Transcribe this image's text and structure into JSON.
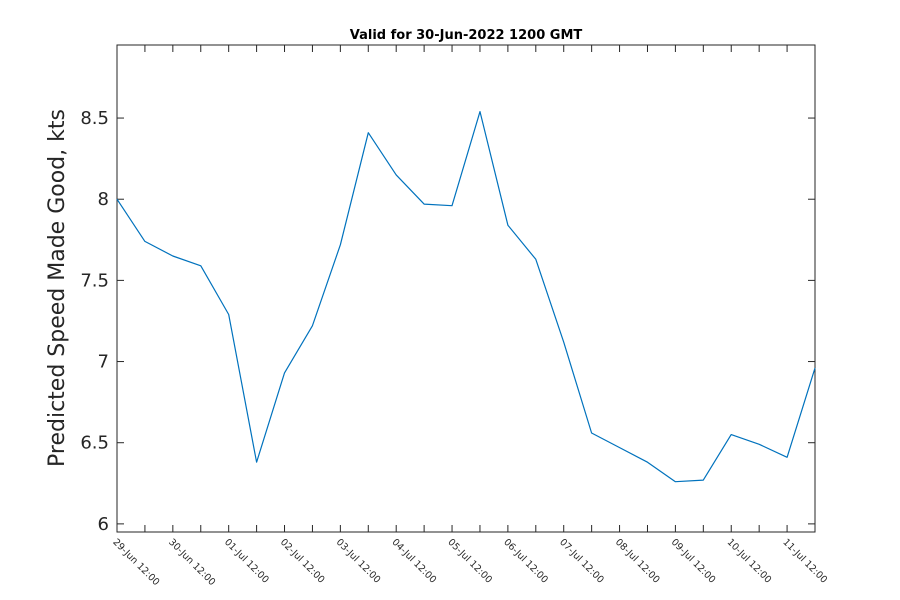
{
  "chart_data": {
    "type": "line",
    "title": "Valid for 30-Jun-2022 1200 GMT",
    "ylabel": "Predicted Speed Made Good, kts",
    "xlabel": "",
    "ylim": [
      5.95,
      8.95
    ],
    "yticks": [
      6,
      6.5,
      7,
      7.5,
      8,
      8.5
    ],
    "ytick_labels": [
      "6",
      "6.5",
      "7",
      "7.5",
      "8",
      "8.5"
    ],
    "x_tick_labels": [
      "29-Jun 12:00",
      "30-Jun 12:00",
      "01-Jul 12:00",
      "02-Jul 12:00",
      "03-Jul 12:00",
      "04-Jul 12:00",
      "05-Jul 12:00",
      "06-Jul 12:00",
      "07-Jul 12:00",
      "08-Jul 12:00",
      "09-Jul 12:00",
      "10-Jul 12:00",
      "11-Jul 12:00"
    ],
    "x_units": "days from 29-Jun 12:00",
    "xlim": [
      0,
      12.5
    ],
    "series_color": "#0072BD",
    "grid": false,
    "x": [
      0,
      0.5,
      1,
      1.5,
      2,
      2.5,
      3,
      3.5,
      4,
      4.5,
      5,
      5.5,
      6,
      6.5,
      7,
      7.5,
      8,
      8.5,
      9,
      9.5,
      10,
      10.5,
      11,
      11.5,
      12,
      12.5
    ],
    "values": [
      8.0,
      7.74,
      7.65,
      7.59,
      7.29,
      6.38,
      6.93,
      7.22,
      7.72,
      8.41,
      8.15,
      7.97,
      7.96,
      8.54,
      7.84,
      7.63,
      7.12,
      6.56,
      6.47,
      6.38,
      6.26,
      6.27,
      6.55,
      6.49,
      6.41,
      6.96
    ]
  }
}
